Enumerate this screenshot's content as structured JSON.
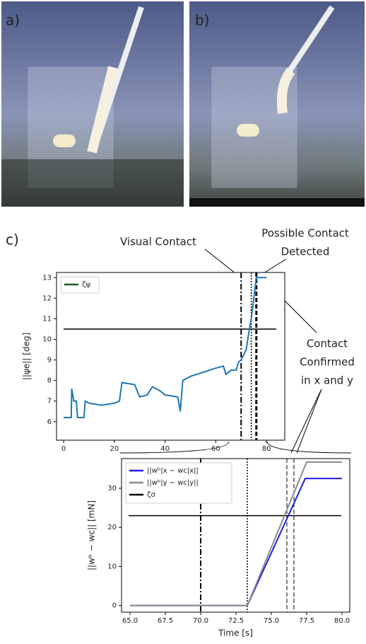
{
  "panel_labels": [
    "a)",
    "b)",
    "c)"
  ],
  "annotations": {
    "visual_contact": "Visual Contact",
    "possible_contact": [
      "Possible Contact",
      "Detected"
    ],
    "contact_confirmed": [
      "Contact",
      "Confirmed",
      "in x and y"
    ]
  },
  "chart_data": [
    {
      "type": "line",
      "ylabel": "||ψe|| [deg]",
      "xlim": [
        -2.8,
        87.2
      ],
      "ylim": [
        5.1,
        13.25
      ],
      "xticks": [
        0,
        20,
        40,
        60,
        80
      ],
      "yticks": [
        6,
        7,
        8,
        9,
        10,
        11,
        12,
        13
      ],
      "legend": "upper left",
      "series": [
        {
          "color": "#1f77b4",
          "x": [
            0,
            3,
            3.2,
            4,
            5,
            5.5,
            8,
            8.5,
            10,
            15,
            20,
            22,
            23,
            28,
            30,
            33,
            35,
            38,
            40,
            45,
            46,
            47,
            50,
            55,
            60,
            63,
            64,
            66,
            68,
            69,
            70,
            72,
            73,
            74,
            75,
            76,
            80
          ],
          "values": [
            6.2,
            6.2,
            7.6,
            7.0,
            7.0,
            6.2,
            6.2,
            7.0,
            6.9,
            6.8,
            6.9,
            7.0,
            7.9,
            7.8,
            7.2,
            7.3,
            7.7,
            7.5,
            7.3,
            7.2,
            6.5,
            8.0,
            8.2,
            8.4,
            8.6,
            8.7,
            8.3,
            8.5,
            8.5,
            8.9,
            9.0,
            9.5,
            10.3,
            11.0,
            12.0,
            13.0,
            13.0
          ]
        }
      ],
      "threshold": {
        "name": "ζψ",
        "value": 10.5,
        "color": "#000000",
        "legend_color": "#1a5c1a"
      },
      "vlines": [
        {
          "x": 70,
          "style": "dashdot"
        },
        {
          "x": 74,
          "style": "dotted"
        },
        {
          "x": 76,
          "style": "dashed"
        }
      ]
    },
    {
      "type": "line",
      "xlabel": "Time [s]",
      "ylabel": "||wᵇ − wc|| [mN]",
      "xlim": [
        64.4,
        80.55
      ],
      "ylim": [
        -1.7,
        37.6
      ],
      "xticks": [
        {
          "value": 65,
          "label": "65.0"
        },
        {
          "value": 67.5,
          "label": "67.5"
        },
        {
          "value": 70,
          "label": "70.0"
        },
        {
          "value": 72.5,
          "label": "72.5"
        },
        {
          "value": 75,
          "label": "75.0"
        },
        {
          "value": 77.5,
          "label": "77.5"
        },
        {
          "value": 80,
          "label": "80.0"
        }
      ],
      "yticks": [
        0,
        10,
        20,
        30
      ],
      "legend": "upper left",
      "series": [
        {
          "name": "||wᵇ|x − wc|x||",
          "color": "#1f1fe0",
          "x": [
            65,
            73.3,
            77.4,
            80
          ],
          "values": [
            0,
            0,
            32.5,
            32.5
          ]
        },
        {
          "name": "||wᵇ|y − wc|y||",
          "color": "#8c8c8c",
          "x": [
            65,
            73.3,
            77.5,
            80
          ],
          "values": [
            0,
            0,
            36.7,
            36.7
          ]
        }
      ],
      "threshold": {
        "name": "ζσ",
        "value": 23,
        "color": "#000000",
        "legend_color": "#000000"
      },
      "vlines": [
        {
          "x": 70,
          "style": "dashdot"
        },
        {
          "x": 73.3,
          "style": "dotted"
        },
        {
          "x": 76.1,
          "style": "dashed"
        },
        {
          "x": 76.6,
          "style": "dashed"
        }
      ]
    }
  ]
}
